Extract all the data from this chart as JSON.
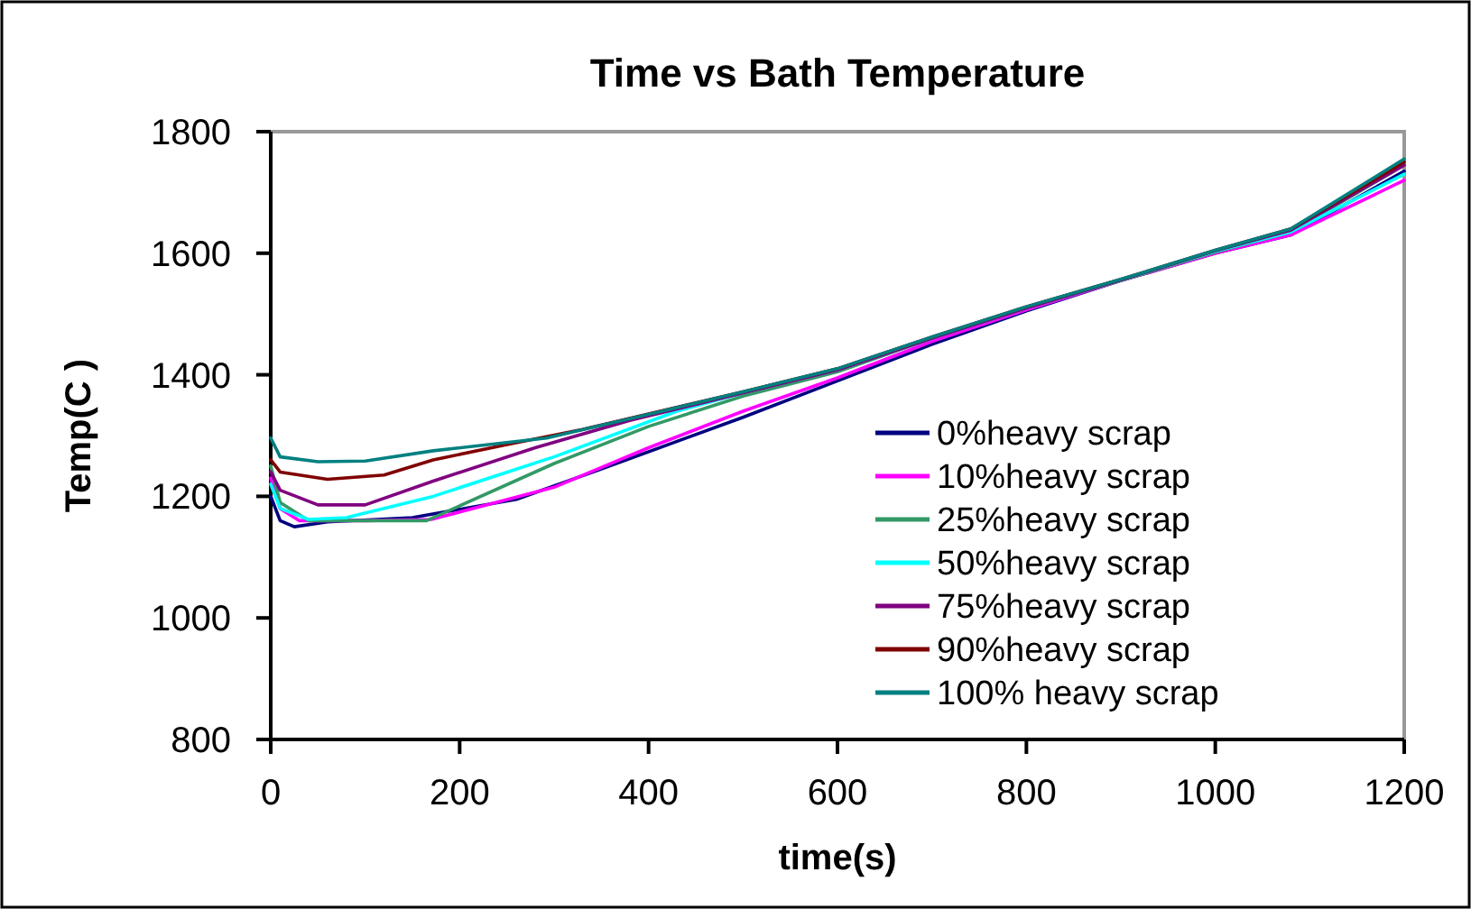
{
  "chart_data": {
    "type": "line",
    "title": "Time vs Bath Temperature",
    "xlabel": "time(s)",
    "ylabel": "Temp(C )",
    "xlim": [
      0,
      1200
    ],
    "ylim": [
      800,
      1800
    ],
    "xticks": [
      0,
      200,
      400,
      600,
      800,
      1000,
      1200
    ],
    "yticks": [
      800,
      1000,
      1200,
      1400,
      1600,
      1800
    ],
    "grid": false,
    "legend": "right",
    "marker": "none",
    "line_style": "solid",
    "series": [
      {
        "name": "0%heavy scrap",
        "color": "#000080",
        "x": [
          0,
          10,
          25,
          60,
          150,
          260,
          350,
          500,
          600,
          700,
          800,
          900,
          1000,
          1080,
          1200
        ],
        "values": [
          1200,
          1160,
          1150,
          1158,
          1165,
          1195,
          1245,
          1330,
          1390,
          1450,
          1505,
          1555,
          1600,
          1630,
          1735
        ]
      },
      {
        "name": "10%heavy scrap",
        "color": "#ff00ff",
        "x": [
          0,
          10,
          30,
          100,
          170,
          300,
          400,
          500,
          600,
          700,
          800,
          900,
          1000,
          1080,
          1200
        ],
        "values": [
          1230,
          1180,
          1160,
          1160,
          1162,
          1215,
          1280,
          1340,
          1395,
          1455,
          1507,
          1555,
          1600,
          1630,
          1720
        ]
      },
      {
        "name": "25%heavy scrap",
        "color": "#339966",
        "x": [
          0,
          10,
          40,
          100,
          165,
          300,
          400,
          500,
          600,
          700,
          800,
          900,
          1000,
          1080,
          1200
        ],
        "values": [
          1250,
          1190,
          1160,
          1160,
          1160,
          1254,
          1315,
          1365,
          1405,
          1460,
          1510,
          1555,
          1602,
          1635,
          1745
        ]
      },
      {
        "name": "50%heavy scrap",
        "color": "#00ffff",
        "x": [
          0,
          10,
          40,
          80,
          172,
          300,
          430,
          500,
          600,
          700,
          800,
          900,
          1000,
          1080,
          1200
        ],
        "values": [
          1220,
          1180,
          1162,
          1165,
          1200,
          1265,
          1340,
          1370,
          1408,
          1460,
          1510,
          1556,
          1603,
          1635,
          1730
        ]
      },
      {
        "name": "75%heavy scrap",
        "color": "#800080",
        "x": [
          0,
          10,
          50,
          100,
          172,
          280,
          380,
          500,
          600,
          700,
          800,
          900,
          1000,
          1080,
          1200
        ],
        "values": [
          1240,
          1210,
          1186,
          1186,
          1225,
          1280,
          1325,
          1370,
          1408,
          1460,
          1510,
          1556,
          1604,
          1638,
          1745
        ]
      },
      {
        "name": "90%heavy scrap",
        "color": "#800000",
        "x": [
          0,
          10,
          60,
          120,
          172,
          250,
          330,
          500,
          600,
          700,
          800,
          900,
          1000,
          1080,
          1200
        ],
        "values": [
          1260,
          1240,
          1228,
          1235,
          1260,
          1285,
          1310,
          1372,
          1410,
          1462,
          1512,
          1557,
          1605,
          1640,
          1750
        ]
      },
      {
        "name": "100% heavy scrap",
        "color": "#008080",
        "x": [
          0,
          10,
          50,
          100,
          172,
          292,
          400,
          500,
          600,
          700,
          800,
          900,
          1000,
          1080,
          1200
        ],
        "values": [
          1296,
          1265,
          1257,
          1258,
          1275,
          1296,
          1335,
          1372,
          1410,
          1462,
          1512,
          1557,
          1605,
          1640,
          1755
        ]
      }
    ]
  }
}
